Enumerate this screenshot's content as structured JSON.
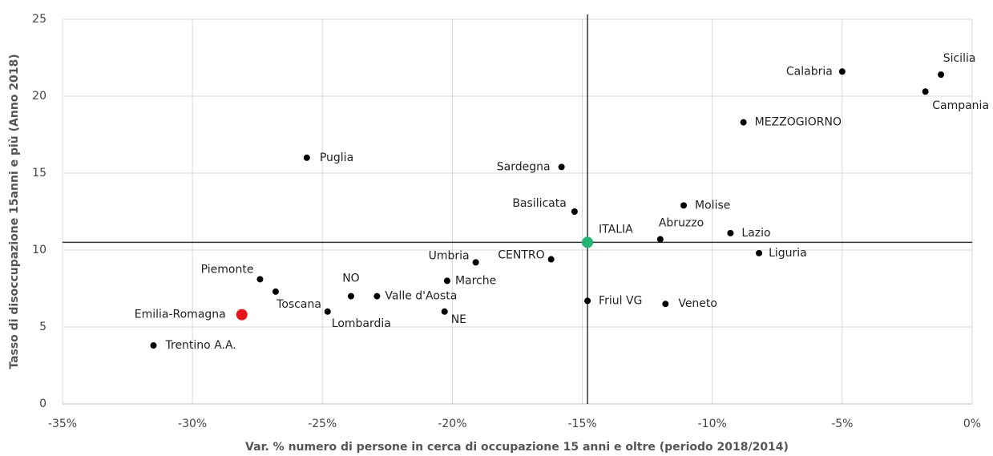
{
  "chart_data": {
    "type": "scatter",
    "x_label": "Var. % numero di persone in cerca di occupazione 15 anni e oltre (periodo 2018/2014)",
    "y_label": "Tasso di disoccupazione 15anni e più (Anno 2018)",
    "labels": [
      "Sicilia",
      "Calabria",
      "Campania",
      "MEZZOGIORNO",
      "Puglia",
      "Sardegna",
      "Basilicata",
      "Molise",
      "ITALIA",
      "Abruzzo",
      "Lazio",
      "Liguria",
      "CENTRO",
      "Umbria",
      "Marche",
      "Piemonte",
      "Toscana",
      "NO",
      "Valle d'Aosta",
      "Friul VG",
      "Veneto",
      "Emilia-Romagna",
      "Lombardia",
      "NE",
      "Trentino A.A."
    ],
    "x": [
      -1.2,
      -5.0,
      -1.8,
      -8.8,
      -25.6,
      -15.8,
      -15.3,
      -11.1,
      -14.8,
      -12.0,
      -9.3,
      -8.2,
      -16.2,
      -19.1,
      -20.2,
      -27.4,
      -26.8,
      -23.9,
      -22.9,
      -14.8,
      -11.8,
      -28.1,
      -24.8,
      -20.3,
      -31.5
    ],
    "values": [
      21.4,
      21.6,
      20.3,
      18.3,
      16.0,
      15.4,
      12.5,
      12.9,
      10.5,
      10.7,
      11.1,
      9.8,
      9.4,
      9.2,
      8.0,
      8.1,
      7.3,
      7.0,
      7.0,
      6.7,
      6.5,
      5.8,
      6.0,
      6.0,
      3.8
    ],
    "colors": [
      "#000",
      "#000",
      "#000",
      "#000",
      "#000",
      "#000",
      "#000",
      "#000",
      "#22b573",
      "#000",
      "#000",
      "#000",
      "#000",
      "#000",
      "#000",
      "#000",
      "#000",
      "#000",
      "#000",
      "#000",
      "#000",
      "#e8141c",
      "#000",
      "#000",
      "#000"
    ],
    "reference": {
      "x": -14.8,
      "y": 10.5
    },
    "xlim": [
      -35,
      0
    ],
    "xticks": [
      {
        "value": -35,
        "label": "-35%"
      },
      {
        "value": -30,
        "label": "-30%"
      },
      {
        "value": -25,
        "label": "-25%"
      },
      {
        "value": -20,
        "label": "-20%"
      },
      {
        "value": -15,
        "label": "-15%"
      },
      {
        "value": -10,
        "label": "-10%"
      },
      {
        "value": -5,
        "label": "-5%"
      },
      {
        "value": 0,
        "label": "0%"
      }
    ],
    "ylim": [
      0,
      25
    ],
    "yticks": [
      0,
      5,
      10,
      15,
      20,
      25
    ],
    "grid": true
  }
}
